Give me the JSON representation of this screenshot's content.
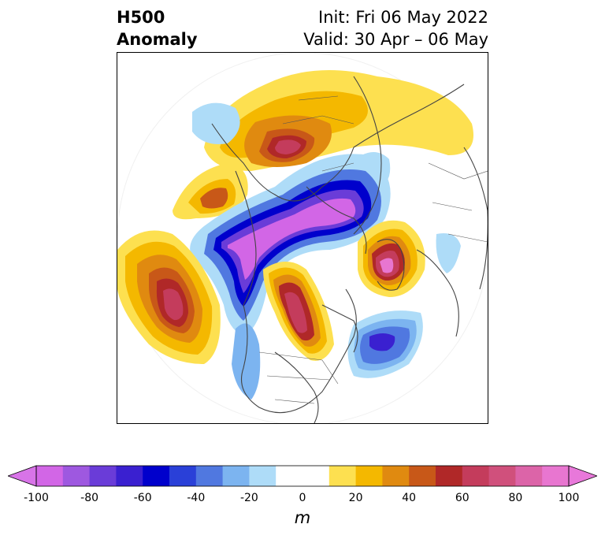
{
  "title": {
    "left_line1": "H500",
    "left_line2": "Anomaly",
    "right_line1": "Init: Fri 06 May 2022",
    "right_line2": "Valid: 30 Apr – 06 May"
  },
  "colorbar": {
    "unit": "m",
    "tick_labels": [
      "-100",
      "-80",
      "-60",
      "-40",
      "-20",
      "0",
      "20",
      "40",
      "60",
      "80",
      "100"
    ],
    "colors": [
      "#d266e6",
      "#9e58e0",
      "#6a3cd8",
      "#3a20d0",
      "#0000cc",
      "#2a40d8",
      "#5078e0",
      "#7cb4f0",
      "#aedcf8",
      "#ffffff",
      "#ffffff",
      "#fde050",
      "#f4b800",
      "#e08a10",
      "#c85818",
      "#b02828",
      "#c43c5c",
      "#d0507c",
      "#dc64a8",
      "#e876d0"
    ],
    "extend_low": "#d874e8",
    "extend_high": "#e878da"
  }
}
